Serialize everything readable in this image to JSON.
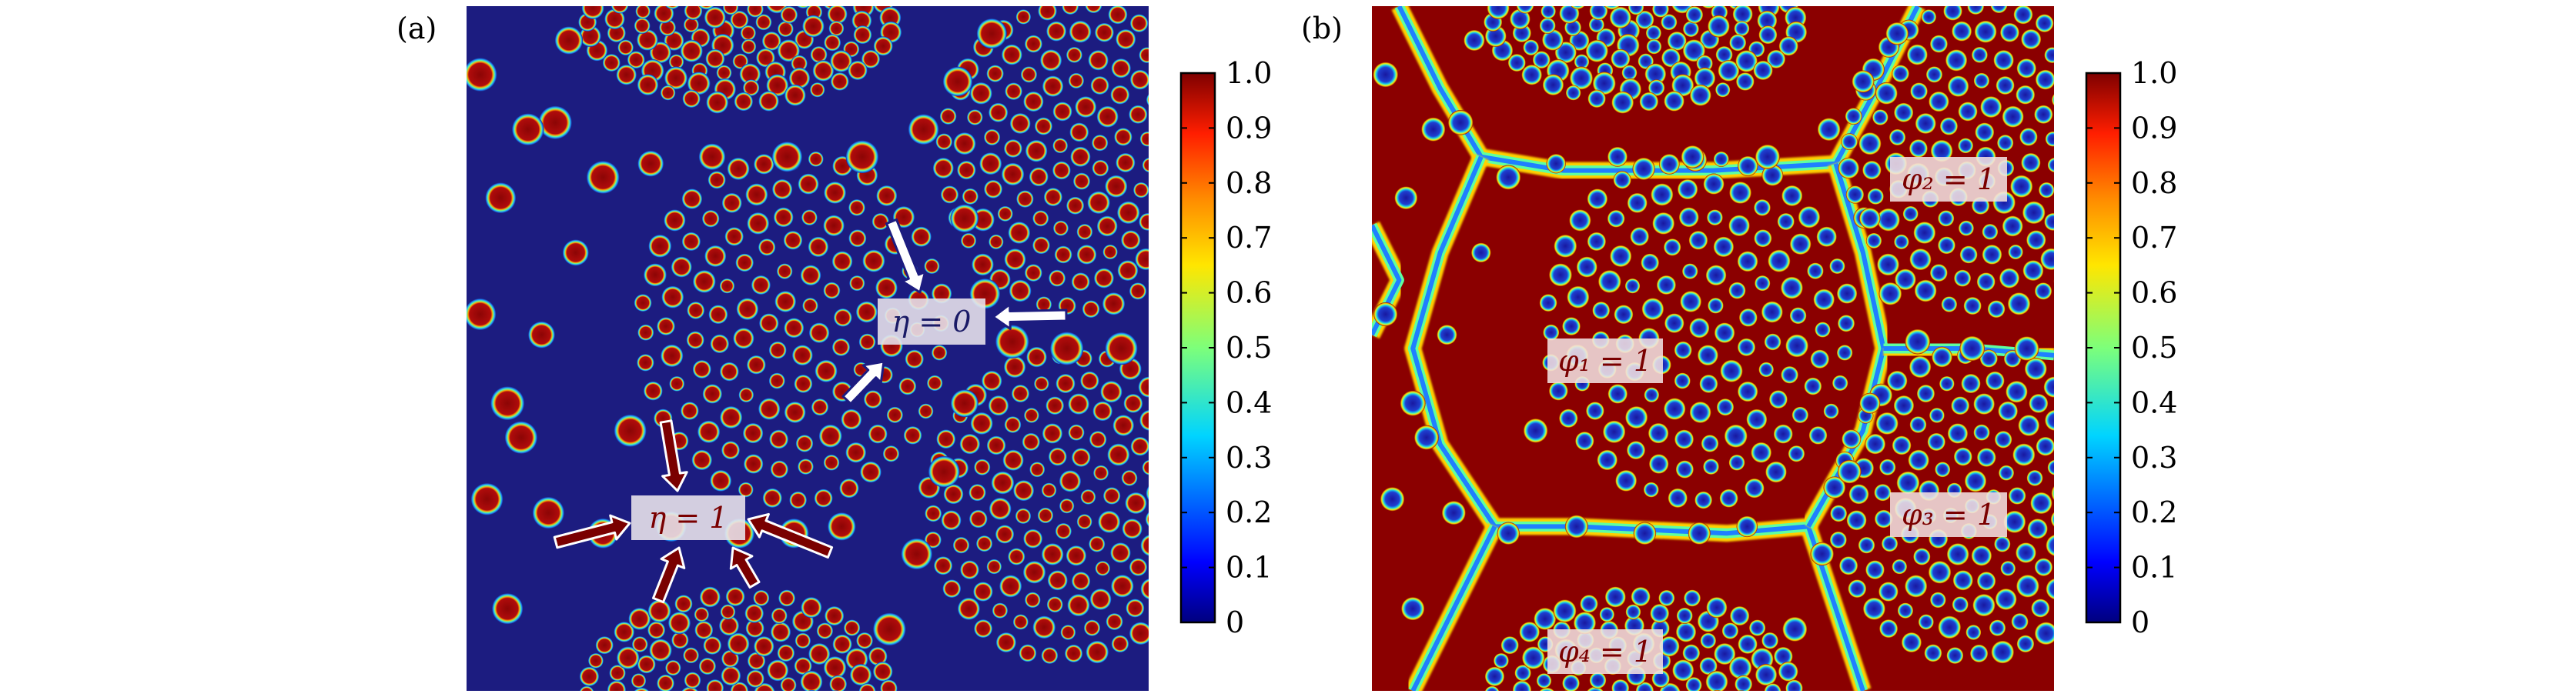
{
  "figure": {
    "panels": [
      {
        "id": "a",
        "label": "(a)",
        "field": "eta",
        "annotations": [
          {
            "text": "η = 0",
            "color": "#1a1a66"
          },
          {
            "text": "η = 1",
            "color": "#7a0000"
          }
        ]
      },
      {
        "id": "b",
        "label": "(b)",
        "field": "phi",
        "annotations": [
          {
            "text": "φ₁ = 1",
            "color": "#7a0000"
          },
          {
            "text": "φ₂ = 1",
            "color": "#7a0000"
          },
          {
            "text": "φ₃ = 1",
            "color": "#7a0000"
          },
          {
            "text": "φ₄ = 1",
            "color": "#7a0000"
          }
        ]
      }
    ],
    "colorbar": {
      "colormap": "jet",
      "ticks": [
        "0",
        "0.1",
        "0.2",
        "0.3",
        "0.4",
        "0.5",
        "0.6",
        "0.7",
        "0.8",
        "0.9",
        "1.0"
      ]
    },
    "colors": {
      "low": "#1c1c80",
      "high": "#8b0000",
      "particle_rim": "#ffffff"
    }
  }
}
